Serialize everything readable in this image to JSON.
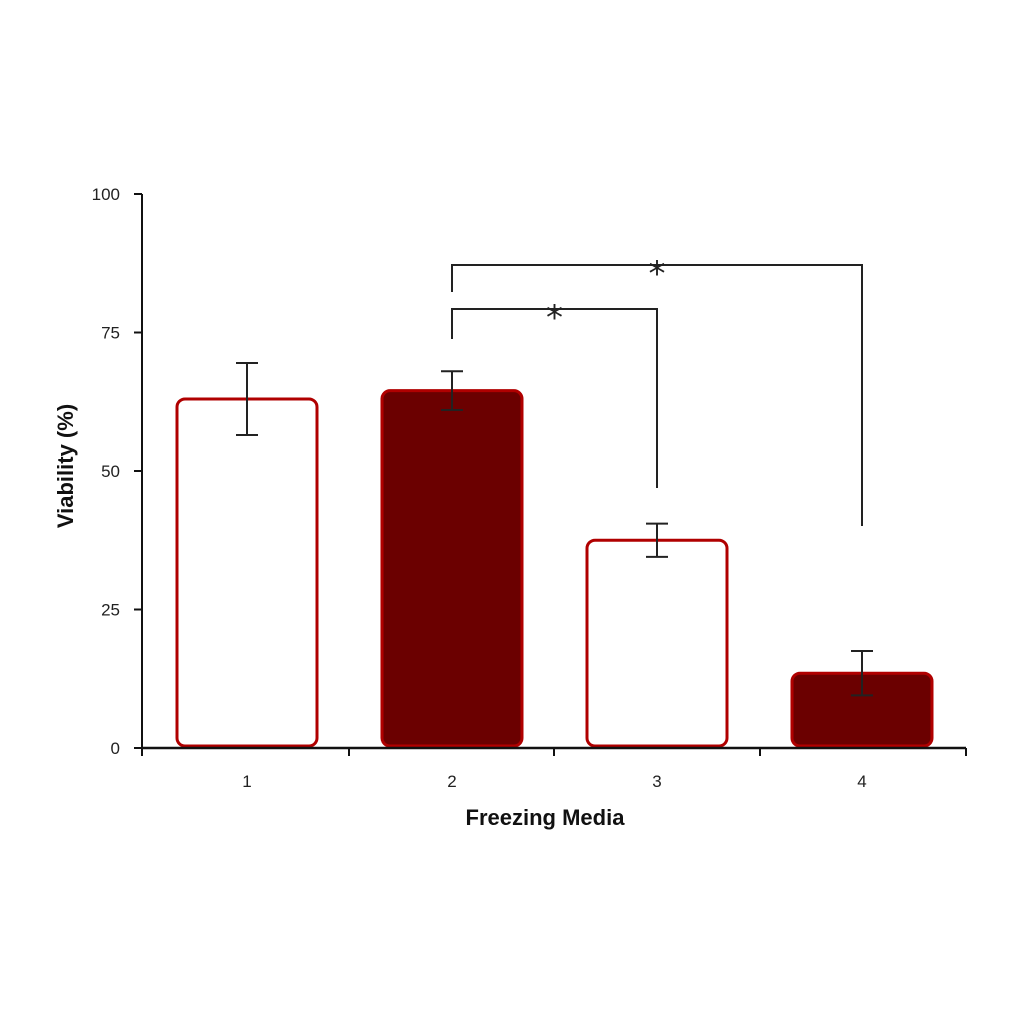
{
  "chart_data": {
    "type": "bar",
    "title": "",
    "xlabel": "Freezing Media",
    "ylabel": "Viability (%)",
    "categories": [
      "1",
      "2",
      "3",
      "4"
    ],
    "values": [
      63,
      64.5,
      37.5,
      13.5
    ],
    "errors": [
      6.5,
      3.5,
      3,
      4
    ],
    "fills": [
      "white",
      "dark",
      "white",
      "dark"
    ],
    "ylim": [
      0,
      100
    ],
    "yticks": [
      0,
      25,
      50,
      75,
      100
    ],
    "ytick_labels": [
      "0",
      "25",
      "50",
      "75",
      "100"
    ],
    "grid": false,
    "legend": "none",
    "significance": [
      {
        "from": "2",
        "to": "3",
        "label": "*"
      },
      {
        "from": "2",
        "to": "4",
        "label": "*"
      }
    ],
    "colors": {
      "bar_dark": "#6b0000",
      "bar_outline": "#b00000",
      "bar_white": "#ffffff",
      "axis": "#111111",
      "errorbar": "#222222"
    }
  }
}
